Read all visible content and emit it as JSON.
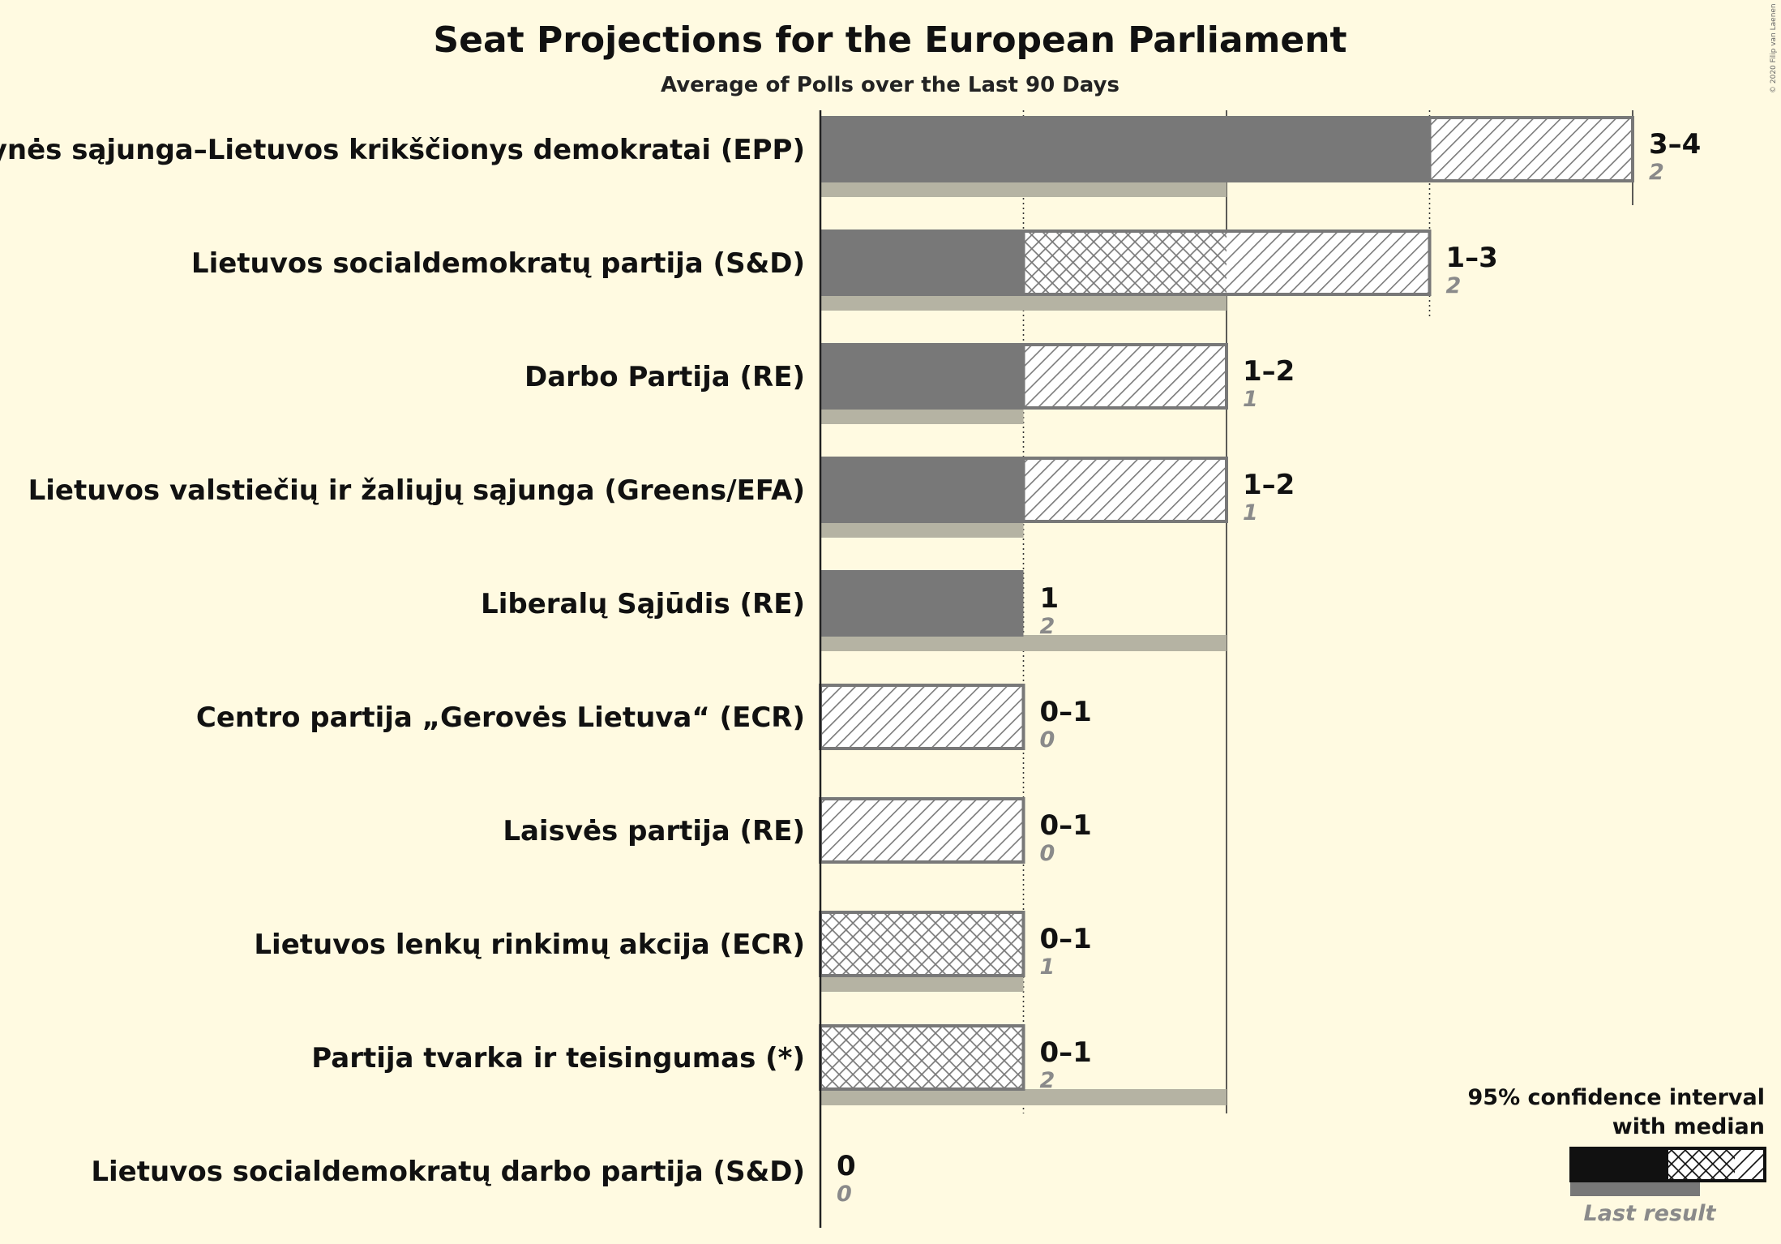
{
  "chart_data": {
    "type": "bar",
    "title": "Seat Projections for the European Parliament",
    "subtitle": "Average of Polls over the Last 90 Days",
    "copyright": "© 2020 Filip van Laenen",
    "max_seats": 4,
    "rows": [
      {
        "party": "Tėvynės sąjunga–Lietuvos krikščionys demokratai (EPP)",
        "ci_low": 3,
        "median": 3,
        "ci_high": 4,
        "range_label": "3–4",
        "last_result": 2,
        "last_label": "2"
      },
      {
        "party": "Lietuvos socialdemokratų partija (S&D)",
        "ci_low": 1,
        "median": 2,
        "ci_high": 3,
        "range_label": "1–3",
        "last_result": 2,
        "last_label": "2"
      },
      {
        "party": "Darbo Partija (RE)",
        "ci_low": 1,
        "median": 1,
        "ci_high": 2,
        "range_label": "1–2",
        "last_result": 1,
        "last_label": "1"
      },
      {
        "party": "Lietuvos valstiečių ir žaliųjų sąjunga (Greens/EFA)",
        "ci_low": 1,
        "median": 1,
        "ci_high": 2,
        "range_label": "1–2",
        "last_result": 1,
        "last_label": "1"
      },
      {
        "party": "Liberalų Sąjūdis (RE)",
        "ci_low": 1,
        "median": 1,
        "ci_high": 1,
        "range_label": "1",
        "last_result": 2,
        "last_label": "2"
      },
      {
        "party": "Centro partija „Gerovės Lietuva“ (ECR)",
        "ci_low": 0,
        "median": 0,
        "ci_high": 1,
        "range_label": "0–1",
        "last_result": 0,
        "last_label": "0"
      },
      {
        "party": "Laisvės partija (RE)",
        "ci_low": 0,
        "median": 0,
        "ci_high": 1,
        "range_label": "0–1",
        "last_result": 0,
        "last_label": "0"
      },
      {
        "party": "Lietuvos lenkų rinkimų akcija (ECR)",
        "ci_low": 0,
        "median": 1,
        "ci_high": 1,
        "range_label": "0–1",
        "last_result": 1,
        "last_label": "1"
      },
      {
        "party": "Partija tvarka ir teisingumas (*)",
        "ci_low": 0,
        "median": 1,
        "ci_high": 1,
        "range_label": "0–1",
        "last_result": 2,
        "last_label": "2"
      },
      {
        "party": "Lietuvos socialdemokratų darbo partija (S&D)",
        "ci_low": 0,
        "median": 0,
        "ci_high": 0,
        "range_label": "0",
        "last_result": 0,
        "last_label": "0"
      }
    ],
    "legend": {
      "line1": "95% confidence interval",
      "line2": "with median",
      "last_result": "Last result"
    },
    "colors": {
      "background": "#fffae1",
      "bar": "#787878",
      "last_result": "#b5b3a3",
      "hatch": "#787878",
      "axis": "#222222"
    }
  }
}
